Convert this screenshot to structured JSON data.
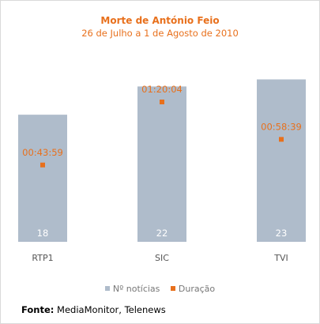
{
  "colors": {
    "accent": "#e8701c",
    "bar": "#afbccb",
    "bar_label": "#ffffff",
    "axis_text": "#555555"
  },
  "source": {
    "label": "Fonte:",
    "text": " MediaMonitor, Telenews"
  },
  "chart_data": {
    "type": "bar",
    "title": "Morte de António Feio",
    "subtitle": "26 de Julho a 1 de Agosto de 2010",
    "categories": [
      "RTP1",
      "SIC",
      "TVI"
    ],
    "series": [
      {
        "name": "Nº notícias",
        "type": "bar",
        "values": [
          18,
          22,
          23
        ],
        "labels": [
          "18",
          "22",
          "23"
        ]
      },
      {
        "name": "Duração",
        "type": "point",
        "values_seconds": [
          2639,
          4804,
          3519
        ],
        "labels": [
          "00:43:59",
          "01:20:04",
          "00:58:39"
        ]
      }
    ],
    "ylim_bars": [
      0,
      23.5
    ],
    "ylim_duration": [
      0,
      5700
    ],
    "legend": "bottom-center",
    "grid": false
  }
}
